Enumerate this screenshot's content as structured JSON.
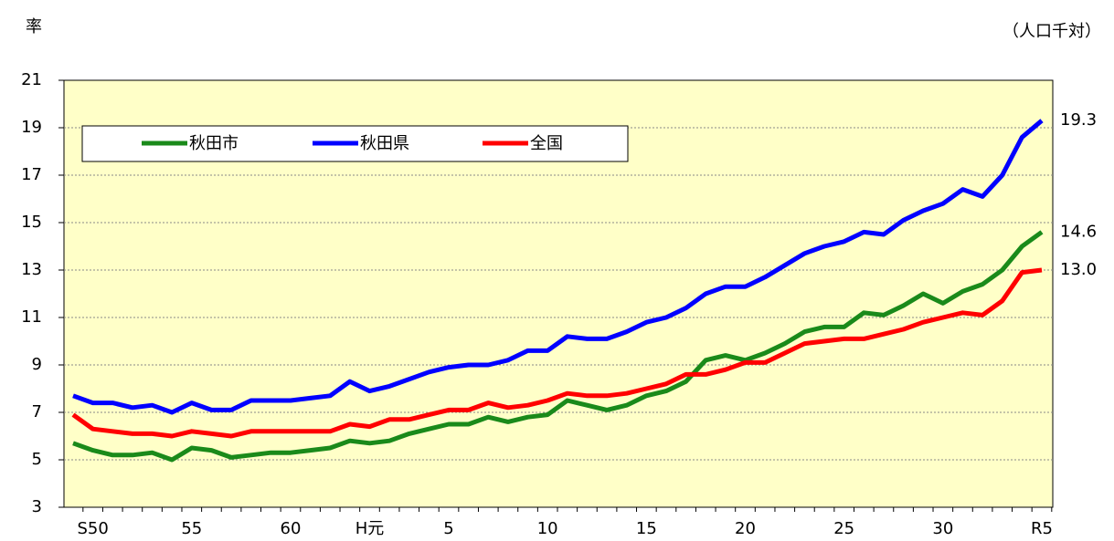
{
  "chart_data": {
    "type": "line",
    "y_label": "率",
    "unit": "（人口千対）",
    "categories": [
      null,
      "S50",
      null,
      null,
      null,
      null,
      "55",
      null,
      null,
      null,
      null,
      "60",
      null,
      null,
      null,
      "H元",
      null,
      null,
      null,
      "5",
      null,
      null,
      null,
      null,
      "10",
      null,
      null,
      null,
      null,
      "15",
      null,
      null,
      null,
      null,
      "20",
      null,
      null,
      null,
      null,
      "25",
      null,
      null,
      null,
      null,
      "30",
      null,
      null,
      null,
      null,
      "R5"
    ],
    "ylim": [
      3,
      21
    ],
    "yticks": [
      3,
      5,
      7,
      9,
      11,
      13,
      15,
      17,
      19,
      21
    ],
    "grid": true,
    "legend": "top-left",
    "series": [
      {
        "name": "秋田市",
        "color": "#1a8a1a",
        "values": [
          5.7,
          5.4,
          5.2,
          5.2,
          5.3,
          5.0,
          5.5,
          5.4,
          5.1,
          5.2,
          5.3,
          5.3,
          5.4,
          5.5,
          5.8,
          5.7,
          5.8,
          6.1,
          6.3,
          6.5,
          6.5,
          6.8,
          6.6,
          6.8,
          6.9,
          7.5,
          7.3,
          7.1,
          7.3,
          7.7,
          7.9,
          8.3,
          9.2,
          9.4,
          9.2,
          9.5,
          9.9,
          10.4,
          10.6,
          10.6,
          11.2,
          11.1,
          11.5,
          12.0,
          11.6,
          12.1,
          12.4,
          13.0,
          14.0,
          14.6
        ],
        "value_labels": [
          null,
          null,
          null,
          null,
          null,
          null,
          null,
          null,
          null,
          null,
          null,
          null,
          null,
          null,
          null,
          null,
          null,
          null,
          null,
          null,
          null,
          null,
          null,
          null,
          null,
          null,
          null,
          null,
          null,
          null,
          null,
          null,
          null,
          null,
          null,
          null,
          null,
          null,
          null,
          null,
          null,
          null,
          null,
          null,
          null,
          null,
          null,
          null,
          null,
          "14.6"
        ]
      },
      {
        "name": "秋田県",
        "color": "#0000ff",
        "values": [
          7.7,
          7.4,
          7.4,
          7.2,
          7.3,
          7.0,
          7.4,
          7.1,
          7.1,
          7.5,
          7.5,
          7.5,
          7.6,
          7.7,
          8.3,
          7.9,
          8.1,
          8.4,
          8.7,
          8.9,
          9.0,
          9.0,
          9.2,
          9.6,
          9.6,
          10.2,
          10.1,
          10.1,
          10.4,
          10.8,
          11.0,
          11.4,
          12.0,
          12.3,
          12.3,
          12.7,
          13.2,
          13.7,
          14.0,
          14.2,
          14.6,
          14.5,
          15.1,
          15.5,
          15.8,
          16.4,
          16.1,
          17.0,
          18.6,
          19.3
        ],
        "value_labels": [
          null,
          null,
          null,
          null,
          null,
          null,
          null,
          null,
          null,
          null,
          null,
          null,
          null,
          null,
          null,
          null,
          null,
          null,
          null,
          null,
          null,
          null,
          null,
          null,
          null,
          null,
          null,
          null,
          null,
          null,
          null,
          null,
          null,
          null,
          null,
          null,
          null,
          null,
          null,
          null,
          null,
          null,
          null,
          null,
          null,
          null,
          null,
          null,
          null,
          "19.3"
        ]
      },
      {
        "name": "全国",
        "color": "#ff0000",
        "values": [
          6.9,
          6.3,
          6.2,
          6.1,
          6.1,
          6.0,
          6.2,
          6.1,
          6.0,
          6.2,
          6.2,
          6.2,
          6.2,
          6.2,
          6.5,
          6.4,
          6.7,
          6.7,
          6.9,
          7.1,
          7.1,
          7.4,
          7.2,
          7.3,
          7.5,
          7.8,
          7.7,
          7.7,
          7.8,
          8.0,
          8.2,
          8.6,
          8.6,
          8.8,
          9.1,
          9.1,
          9.5,
          9.9,
          10.0,
          10.1,
          10.1,
          10.3,
          10.5,
          10.8,
          11.0,
          11.2,
          11.1,
          11.7,
          12.9,
          13.0
        ],
        "value_labels": [
          null,
          null,
          null,
          null,
          null,
          null,
          null,
          null,
          null,
          null,
          null,
          null,
          null,
          null,
          null,
          null,
          null,
          null,
          null,
          null,
          null,
          null,
          null,
          null,
          null,
          null,
          null,
          null,
          null,
          null,
          null,
          null,
          null,
          null,
          null,
          null,
          null,
          null,
          null,
          null,
          null,
          null,
          null,
          null,
          null,
          null,
          null,
          null,
          null,
          "13.0"
        ]
      }
    ]
  }
}
